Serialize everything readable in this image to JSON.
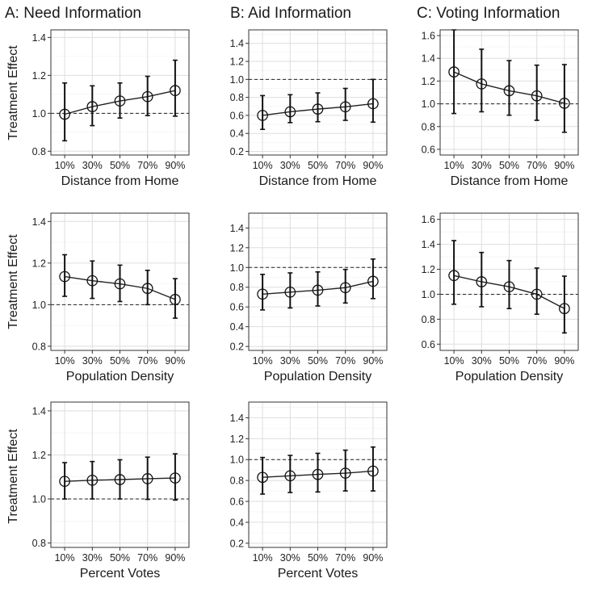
{
  "columns": [
    {
      "title": "A: Need Information"
    },
    {
      "title": "B: Aid Information"
    },
    {
      "title": "C: Voting Information"
    }
  ],
  "y_axis_label": "Treatment Effect",
  "chart_data": [
    {
      "type": "line",
      "column": 0,
      "row": 0,
      "xlabel": "Distance from Home",
      "categories": [
        "10%",
        "30%",
        "50%",
        "70%",
        "90%"
      ],
      "values": [
        0.995,
        1.035,
        1.065,
        1.088,
        1.12
      ],
      "ci_low": [
        0.855,
        0.935,
        0.975,
        0.988,
        0.985
      ],
      "ci_high": [
        1.16,
        1.145,
        1.16,
        1.195,
        1.28
      ],
      "ylim": [
        0.78,
        1.44
      ],
      "yticks": [
        0.8,
        1.0,
        1.2,
        1.4
      ],
      "yticklabels": [
        "0.8",
        "1.0",
        "1.2",
        "1.4"
      ],
      "reference_line": 1.0
    },
    {
      "type": "line",
      "column": 1,
      "row": 0,
      "xlabel": "Distance from Home",
      "categories": [
        "10%",
        "30%",
        "50%",
        "70%",
        "90%"
      ],
      "values": [
        0.6,
        0.64,
        0.67,
        0.695,
        0.73
      ],
      "ci_low": [
        0.445,
        0.52,
        0.53,
        0.545,
        0.525
      ],
      "ci_high": [
        0.82,
        0.83,
        0.85,
        0.9,
        1.0
      ],
      "ylim": [
        0.16,
        1.55
      ],
      "yticks": [
        0.2,
        0.4,
        0.6,
        0.8,
        1.0,
        1.2,
        1.4
      ],
      "yticklabels": [
        "0.2",
        "0.4",
        "0.6",
        "0.8",
        "1.0",
        "1.2",
        "1.4"
      ],
      "reference_line": 1.0
    },
    {
      "type": "line",
      "column": 2,
      "row": 0,
      "xlabel": "Distance from Home",
      "categories": [
        "10%",
        "30%",
        "50%",
        "70%",
        "90%"
      ],
      "values": [
        1.28,
        1.175,
        1.115,
        1.07,
        1.005
      ],
      "ci_low": [
        0.915,
        0.93,
        0.9,
        0.855,
        0.75
      ],
      "ci_high": [
        1.65,
        1.48,
        1.38,
        1.34,
        1.345
      ],
      "ylim": [
        0.55,
        1.65
      ],
      "yticks": [
        0.6,
        0.8,
        1.0,
        1.2,
        1.4,
        1.6
      ],
      "yticklabels": [
        "0.6",
        "0.8",
        "1.0",
        "1.2",
        "1.4",
        "1.6"
      ],
      "reference_line": 1.0
    },
    {
      "type": "line",
      "column": 0,
      "row": 1,
      "xlabel": "Population Density",
      "categories": [
        "10%",
        "30%",
        "50%",
        "70%",
        "90%"
      ],
      "values": [
        1.135,
        1.115,
        1.1,
        1.078,
        1.025
      ],
      "ci_low": [
        1.04,
        1.03,
        1.015,
        1.0,
        0.935
      ],
      "ci_high": [
        1.24,
        1.21,
        1.19,
        1.165,
        1.125
      ],
      "ylim": [
        0.78,
        1.44
      ],
      "yticks": [
        0.8,
        1.0,
        1.2,
        1.4
      ],
      "yticklabels": [
        "0.8",
        "1.0",
        "1.2",
        "1.4"
      ],
      "reference_line": 1.0
    },
    {
      "type": "line",
      "column": 1,
      "row": 1,
      "xlabel": "Population Density",
      "categories": [
        "10%",
        "30%",
        "50%",
        "70%",
        "90%"
      ],
      "values": [
        0.73,
        0.75,
        0.77,
        0.795,
        0.86
      ],
      "ci_low": [
        0.57,
        0.59,
        0.61,
        0.64,
        0.685
      ],
      "ci_high": [
        0.93,
        0.945,
        0.955,
        0.98,
        1.085
      ],
      "ylim": [
        0.16,
        1.55
      ],
      "yticks": [
        0.2,
        0.4,
        0.6,
        0.8,
        1.0,
        1.2,
        1.4
      ],
      "yticklabels": [
        "0.2",
        "0.4",
        "0.6",
        "0.8",
        "1.0",
        "1.2",
        "1.4"
      ],
      "reference_line": 1.0
    },
    {
      "type": "line",
      "column": 2,
      "row": 1,
      "xlabel": "Population Density",
      "categories": [
        "10%",
        "30%",
        "50%",
        "70%",
        "90%"
      ],
      "values": [
        1.15,
        1.1,
        1.06,
        1.0,
        0.885
      ],
      "ci_low": [
        0.92,
        0.9,
        0.885,
        0.84,
        0.69
      ],
      "ci_high": [
        1.43,
        1.335,
        1.27,
        1.21,
        1.145
      ],
      "ylim": [
        0.55,
        1.65
      ],
      "yticks": [
        0.6,
        0.8,
        1.0,
        1.2,
        1.4,
        1.6
      ],
      "yticklabels": [
        "0.6",
        "0.8",
        "1.0",
        "1.2",
        "1.4",
        "1.6"
      ],
      "reference_line": 1.0
    },
    {
      "type": "line",
      "column": 0,
      "row": 2,
      "xlabel": "Percent Votes",
      "categories": [
        "10%",
        "30%",
        "50%",
        "70%",
        "90%"
      ],
      "values": [
        1.08,
        1.085,
        1.088,
        1.092,
        1.095
      ],
      "ci_low": [
        1.0,
        1.0,
        1.0,
        0.998,
        0.995
      ],
      "ci_high": [
        1.165,
        1.17,
        1.178,
        1.19,
        1.205
      ],
      "ylim": [
        0.78,
        1.44
      ],
      "yticks": [
        0.8,
        1.0,
        1.2,
        1.4
      ],
      "yticklabels": [
        "0.8",
        "1.0",
        "1.2",
        "1.4"
      ],
      "reference_line": 1.0
    },
    {
      "type": "line",
      "column": 1,
      "row": 2,
      "xlabel": "Percent Votes",
      "categories": [
        "10%",
        "30%",
        "50%",
        "70%",
        "90%"
      ],
      "values": [
        0.83,
        0.845,
        0.858,
        0.87,
        0.89
      ],
      "ci_low": [
        0.67,
        0.685,
        0.69,
        0.7,
        0.7
      ],
      "ci_high": [
        1.02,
        1.04,
        1.06,
        1.09,
        1.12
      ],
      "ylim": [
        0.16,
        1.55
      ],
      "yticks": [
        0.2,
        0.4,
        0.6,
        0.8,
        1.0,
        1.2,
        1.4
      ],
      "yticklabels": [
        "0.2",
        "0.4",
        "0.6",
        "0.8",
        "1.0",
        "1.2",
        "1.4"
      ],
      "reference_line": 1.0
    }
  ]
}
